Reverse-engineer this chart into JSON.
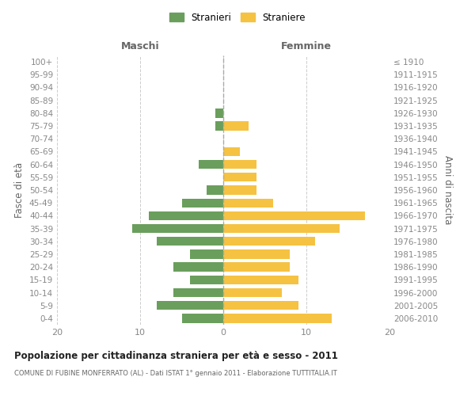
{
  "age_groups": [
    "100+",
    "95-99",
    "90-94",
    "85-89",
    "80-84",
    "75-79",
    "70-74",
    "65-69",
    "60-64",
    "55-59",
    "50-54",
    "45-49",
    "40-44",
    "35-39",
    "30-34",
    "25-29",
    "20-24",
    "15-19",
    "10-14",
    "5-9",
    "0-4"
  ],
  "birth_years": [
    "≤ 1910",
    "1911-1915",
    "1916-1920",
    "1921-1925",
    "1926-1930",
    "1931-1935",
    "1936-1940",
    "1941-1945",
    "1946-1950",
    "1951-1955",
    "1956-1960",
    "1961-1965",
    "1966-1970",
    "1971-1975",
    "1976-1980",
    "1981-1985",
    "1986-1990",
    "1991-1995",
    "1996-2000",
    "2001-2005",
    "2006-2010"
  ],
  "maschi": [
    0,
    0,
    0,
    0,
    1,
    1,
    0,
    0,
    3,
    0,
    2,
    5,
    9,
    11,
    8,
    4,
    6,
    4,
    6,
    8,
    5
  ],
  "femmine": [
    0,
    0,
    0,
    0,
    0,
    3,
    0,
    2,
    4,
    4,
    4,
    6,
    17,
    14,
    11,
    8,
    8,
    9,
    7,
    9,
    13
  ],
  "bar_color_maschi": "#6a9e5c",
  "bar_color_femmine": "#f5c242",
  "title": "Popolazione per cittadinanza straniera per età e sesso - 2011",
  "subtitle": "COMUNE DI FUBINE MONFERRATO (AL) - Dati ISTAT 1° gennaio 2011 - Elaborazione TUTTITALIA.IT",
  "xlabel_left": "Maschi",
  "xlabel_right": "Femmine",
  "ylabel_left": "Fasce di età",
  "ylabel_right": "Anni di nascita",
  "legend_maschi": "Stranieri",
  "legend_femmine": "Straniere",
  "xlim": 20,
  "background_color": "#ffffff",
  "grid_color": "#cccccc"
}
